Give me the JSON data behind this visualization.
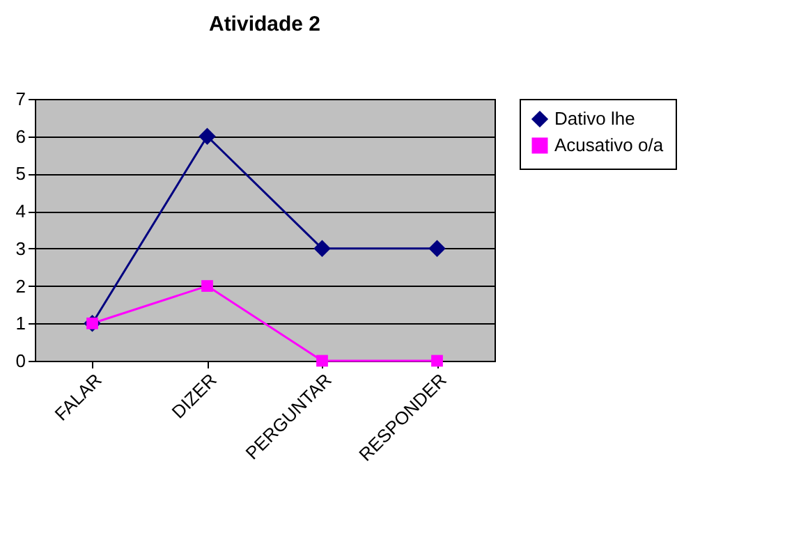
{
  "chart_data": {
    "type": "line",
    "title": "Atividade 2",
    "categories": [
      "FALAR",
      "DIZER",
      "PERGUNTAR",
      "RESPONDER"
    ],
    "series": [
      {
        "name": "Dativo lhe",
        "color": "#000080",
        "marker": "diamond",
        "values": [
          1,
          6,
          3,
          3
        ]
      },
      {
        "name": "Acusativo o/a",
        "color": "#ff00ff",
        "marker": "square",
        "values": [
          1,
          2,
          0,
          0
        ]
      }
    ],
    "ylim": [
      0,
      7
    ],
    "yticks": [
      0,
      1,
      2,
      3,
      4,
      5,
      6,
      7
    ],
    "grid": "y",
    "legend": "right",
    "line_style": "solid"
  }
}
